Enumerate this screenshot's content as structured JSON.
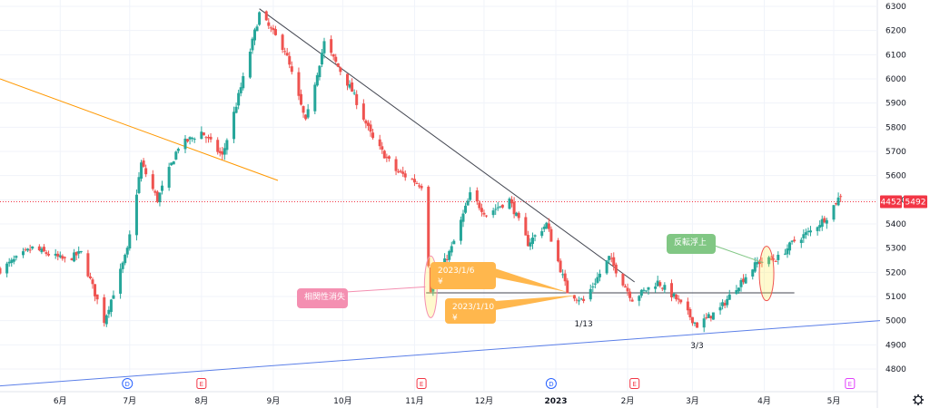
{
  "chart_data": {
    "type": "candlestick",
    "title": "",
    "x_start": "2022-05-06",
    "x_end": "2023-06-30",
    "ylim": [
      4680,
      6320
    ],
    "y_ticks": [
      6300,
      6200,
      6100,
      6000,
      5900,
      5800,
      5700,
      5600,
      5500,
      5400,
      5300,
      5200,
      5100,
      5000,
      4900,
      4800
    ],
    "x_ticks": [
      {
        "date": "2022-06-01",
        "label": "6月"
      },
      {
        "date": "2022-07-01",
        "label": "7月"
      },
      {
        "date": "2022-08-01",
        "label": "8月"
      },
      {
        "date": "2022-09-01",
        "label": "9月"
      },
      {
        "date": "2022-10-01",
        "label": "10月"
      },
      {
        "date": "2022-11-01",
        "label": "11月"
      },
      {
        "date": "2022-12-01",
        "label": "12月"
      },
      {
        "date": "2023-01-01",
        "label": "2023",
        "bold": true
      },
      {
        "date": "2023-02-01",
        "label": "2月"
      },
      {
        "date": "2023-03-01",
        "label": "3月"
      },
      {
        "date": "2023-04-01",
        "label": "4月"
      },
      {
        "date": "2023-05-01",
        "label": "5月"
      },
      {
        "date": "2023-06-01",
        "label": "6月"
      }
    ],
    "up_color": "#26a69a",
    "down_color": "#ef5350",
    "anchors": [
      [
        "2022-05-06",
        5210
      ],
      [
        "2022-05-20",
        5300
      ],
      [
        "2022-06-03",
        5250
      ],
      [
        "2022-06-10",
        5280
      ],
      [
        "2022-06-20",
        5000
      ],
      [
        "2022-06-30",
        5290
      ],
      [
        "2022-07-06",
        5650
      ],
      [
        "2022-07-13",
        5500
      ],
      [
        "2022-07-22",
        5720
      ],
      [
        "2022-08-01",
        5780
      ],
      [
        "2022-08-10",
        5680
      ],
      [
        "2022-08-19",
        6000
      ],
      [
        "2022-08-26",
        6270
      ],
      [
        "2022-09-06",
        6120
      ],
      [
        "2022-09-15",
        5820
      ],
      [
        "2022-09-23",
        6150
      ],
      [
        "2022-10-05",
        5950
      ],
      [
        "2022-10-14",
        5750
      ],
      [
        "2022-10-24",
        5620
      ],
      [
        "2022-11-04",
        5560
      ],
      [
        "2022-11-08",
        5130
      ],
      [
        "2022-11-17",
        5300
      ],
      [
        "2022-11-25",
        5520
      ],
      [
        "2022-12-02",
        5440
      ],
      [
        "2022-12-12",
        5500
      ],
      [
        "2022-12-20",
        5320
      ],
      [
        "2022-12-28",
        5400
      ],
      [
        "2023-01-06",
        5120
      ],
      [
        "2023-01-13",
        5080
      ],
      [
        "2023-01-24",
        5260
      ],
      [
        "2023-02-03",
        5090
      ],
      [
        "2023-02-14",
        5160
      ],
      [
        "2023-02-22",
        5090
      ],
      [
        "2023-03-03",
        4980
      ],
      [
        "2023-03-13",
        5050
      ],
      [
        "2023-03-20",
        5140
      ],
      [
        "2023-03-29",
        5240
      ],
      [
        "2023-04-07",
        5260
      ],
      [
        "2023-04-14",
        5330
      ],
      [
        "2023-04-21",
        5370
      ],
      [
        "2023-04-28",
        5430
      ],
      [
        "2023-05-04",
        5520
      ]
    ],
    "lines": [
      {
        "name": "orange_trend",
        "color": "#ff9800",
        "points": [
          [
            "2022-05-06",
            6000
          ],
          [
            "2022-09-03",
            5580
          ]
        ]
      },
      {
        "name": "black_trend",
        "color": "#434651",
        "points": [
          [
            "2022-08-26",
            6290
          ],
          [
            "2023-02-04",
            5160
          ]
        ]
      },
      {
        "name": "support",
        "color": "#434651",
        "points": [
          [
            "2022-11-06",
            5115
          ],
          [
            "2023-04-14",
            5115
          ]
        ]
      },
      {
        "name": "blue_trend",
        "color": "#5b7fe8",
        "points": [
          [
            "2022-05-06",
            4730
          ],
          [
            "2023-05-21",
            5000
          ]
        ]
      }
    ],
    "price_label_left": "4452",
    "price_label_right": "5492",
    "price_line_value": 5492,
    "annotations": [
      {
        "text": "相関性消失",
        "color": "#f48fb1"
      },
      {
        "text": "2023/1/6\n¥",
        "color": "#ffb74d"
      },
      {
        "text": "2023/1/10\n¥",
        "color": "#ffb74d"
      },
      {
        "text": "反転浮上",
        "color": "#81c784"
      },
      {
        "text": "1/13",
        "color": "#131722"
      },
      {
        "text": "3/3",
        "color": "#131722"
      }
    ],
    "events": [
      {
        "date": "2022-06-30",
        "label": "D",
        "color": "#2962ff",
        "shape": "circle"
      },
      {
        "date": "2022-08-01",
        "label": "E",
        "color": "#f23645",
        "shape": "square"
      },
      {
        "date": "2022-11-04",
        "label": "E",
        "color": "#f23645",
        "shape": "square"
      },
      {
        "date": "2022-12-30",
        "label": "D",
        "color": "#2962ff",
        "shape": "circle"
      },
      {
        "date": "2023-02-04",
        "label": "E",
        "color": "#f23645",
        "shape": "square"
      },
      {
        "date": "2023-05-08",
        "label": "E",
        "color": "#e040fb",
        "shape": "square"
      }
    ]
  },
  "settings_icon": "gear-icon"
}
